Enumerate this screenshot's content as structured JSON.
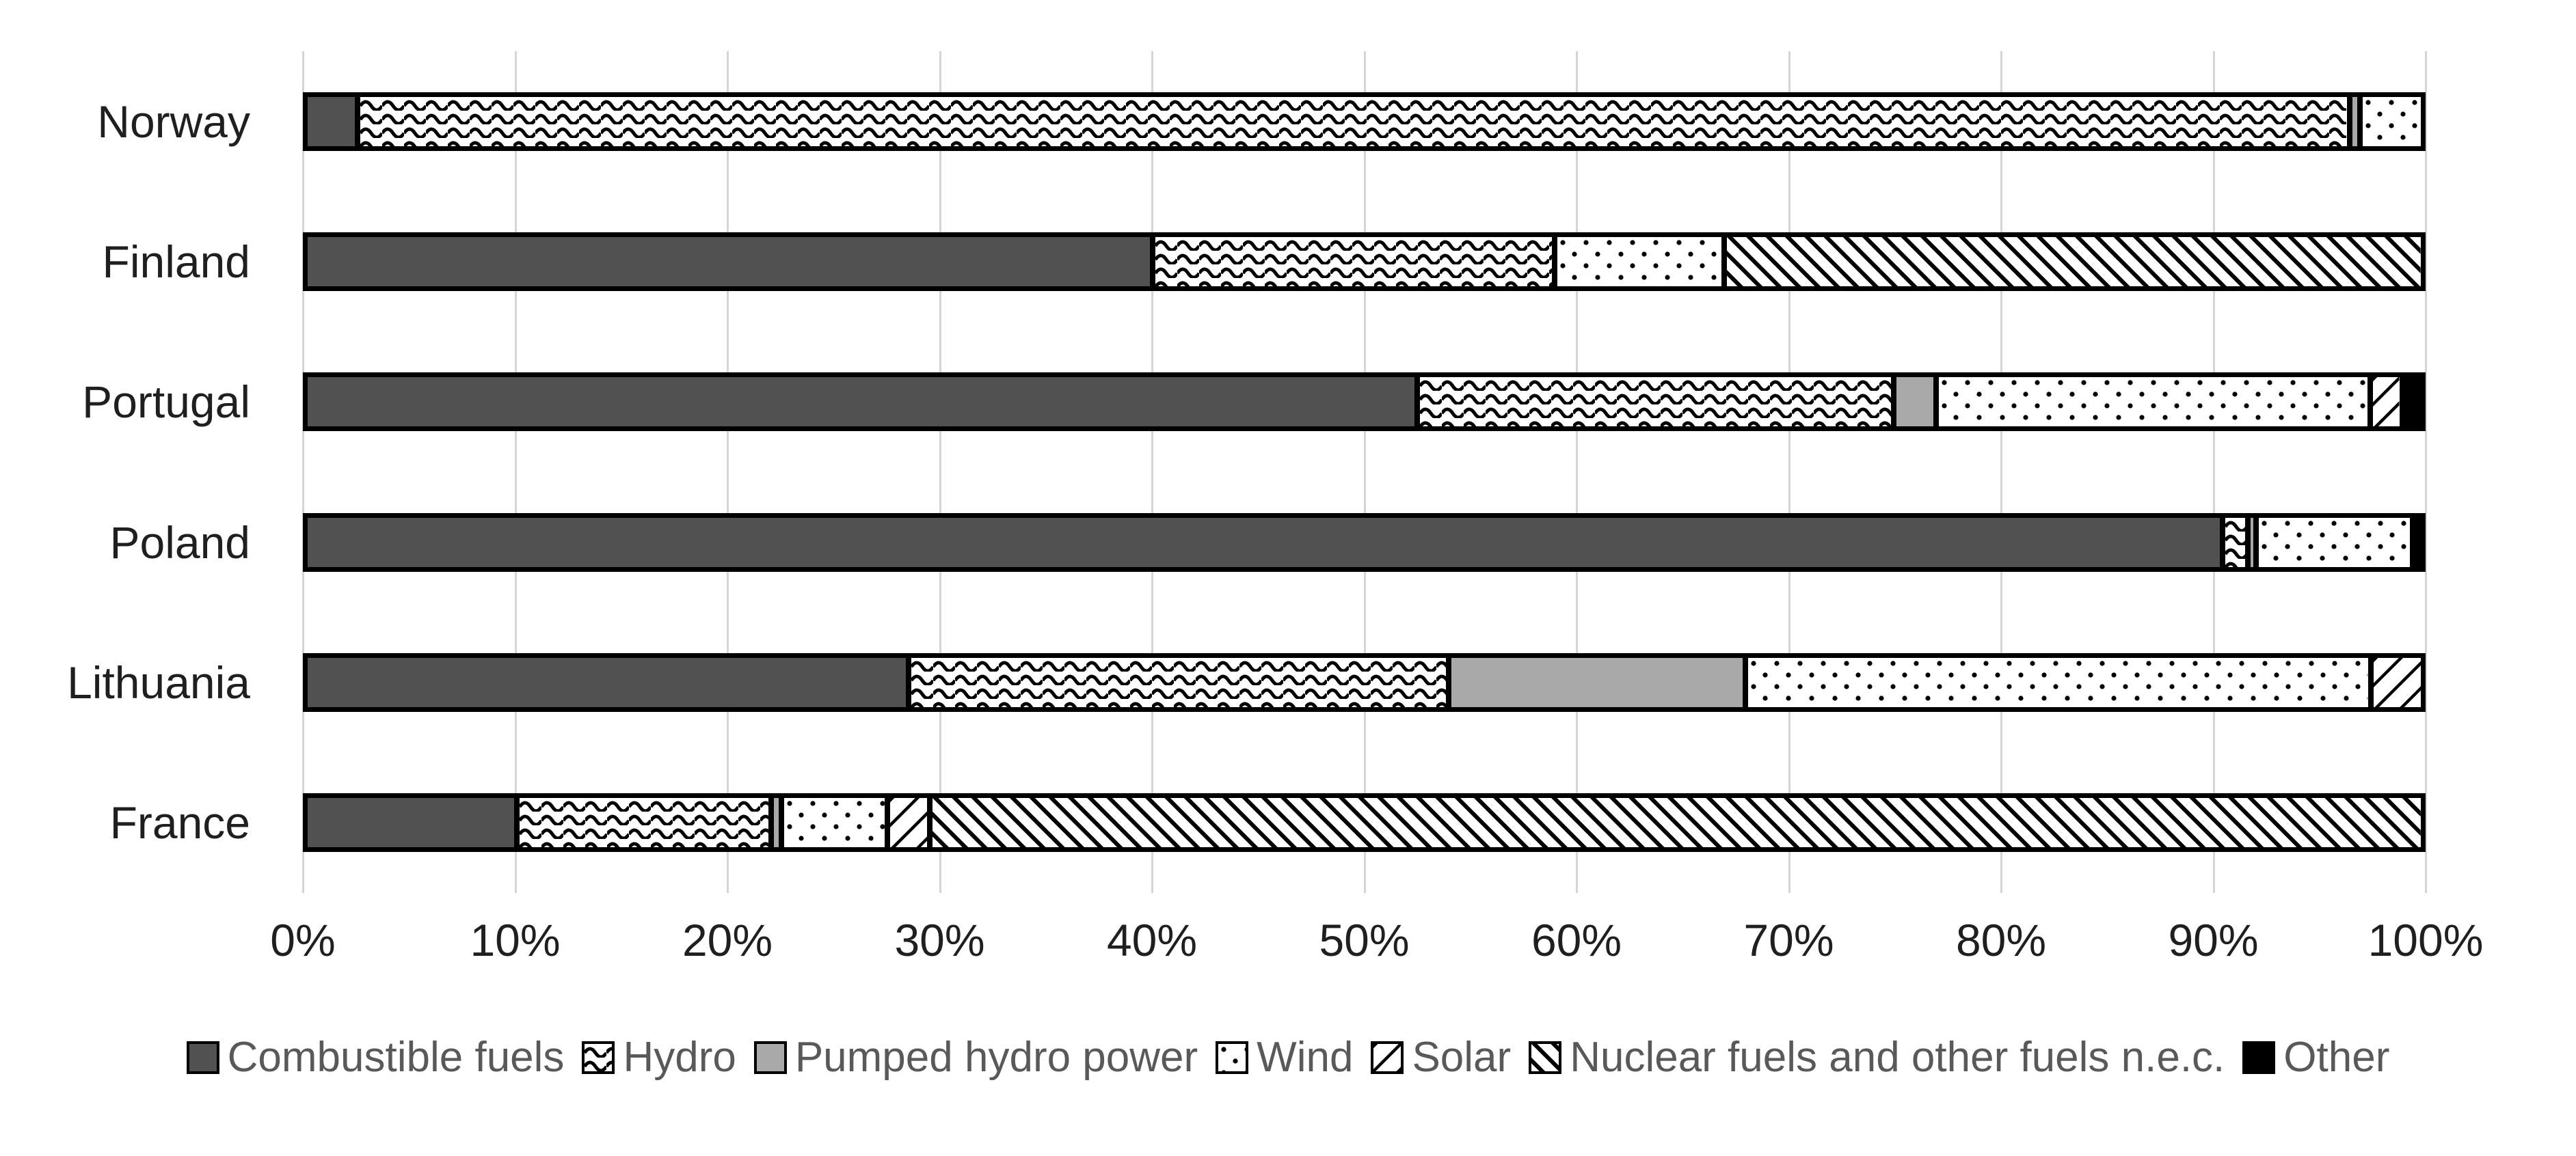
{
  "chart_data": {
    "type": "bar",
    "orientation": "horizontal",
    "stacked": true,
    "title": "",
    "xlabel": "",
    "ylabel": "",
    "unit": "percent of electricity production",
    "grid": true,
    "legend_position": "bottom",
    "categories": [
      "Norway",
      "Finland",
      "Portugal",
      "Poland",
      "Lithuania",
      "France"
    ],
    "series": [
      {
        "key": "combustible-fuels",
        "name": "Combustible fuels",
        "fill": "#515151",
        "values": [
          2.5,
          40,
          52.5,
          90.5,
          28.5,
          10
        ]
      },
      {
        "key": "hydro",
        "name": "Hydro",
        "fill": "hydro-waves",
        "values": [
          94,
          19,
          22.5,
          1.2,
          25.5,
          12
        ]
      },
      {
        "key": "pumped-hydro-power",
        "name": "Pumped hydro power",
        "fill": "#a9a9a9",
        "values": [
          0.5,
          0,
          2,
          0.4,
          14,
          0.5
        ]
      },
      {
        "key": "wind",
        "name": "Wind",
        "fill": "wind-dots",
        "values": [
          3,
          8,
          20.5,
          7.4,
          29.5,
          5
        ]
      },
      {
        "key": "solar",
        "name": "Solar",
        "fill": "solar-diagonal",
        "values": [
          0,
          0,
          1.5,
          0,
          2.5,
          2
        ]
      },
      {
        "key": "nuclear-fuels",
        "name": "Nuclear fuels and other fuels n.e.c.",
        "fill": "nuclear-diagonal",
        "values": [
          0,
          33,
          0,
          0,
          0,
          70.5
        ]
      },
      {
        "key": "other",
        "name": "Other",
        "fill": "#000000",
        "values": [
          0,
          0,
          1,
          0.5,
          0,
          0
        ]
      }
    ],
    "x_axis": {
      "min": 0,
      "max": 100,
      "tick_step": 10,
      "ticks": [
        "0%",
        "10%",
        "20%",
        "30%",
        "40%",
        "50%",
        "60%",
        "70%",
        "80%",
        "90%",
        "100%"
      ]
    }
  },
  "palette": {
    "background": "#ffffff",
    "gridline": "#d5d5d5",
    "bar_border": "#000000",
    "pattern_ink": "#000000",
    "axis_text": "#1f1f1f",
    "legend_text": "#595959"
  }
}
